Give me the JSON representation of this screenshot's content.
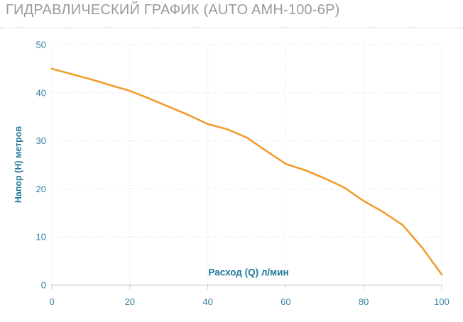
{
  "page": {
    "title": "ГИДРАВЛИЧЕСКИЙ ГРАФИК (AUTO AMH-100-6P)",
    "title_color": "#9a9a9a",
    "background_color": "#ffffff"
  },
  "chart_data": {
    "type": "line",
    "title": "ГИДРАВЛИЧЕСКИЙ ГРАФИК (AUTO AMH-100-6P)",
    "xlabel": "Расход (Q) л/мин",
    "ylabel": "Напор (H) метров",
    "xlim": [
      0,
      100
    ],
    "ylim": [
      0,
      50
    ],
    "xticks": [
      0,
      20,
      40,
      60,
      80,
      100
    ],
    "yticks": [
      0,
      10,
      20,
      30,
      40,
      50
    ],
    "grid": "dotted",
    "legend": "none",
    "series": [
      {
        "x": [
          0,
          5,
          10,
          15,
          20,
          25,
          30,
          35,
          40,
          45,
          50,
          55,
          60,
          65,
          70,
          75,
          80,
          85,
          90,
          95,
          100
        ],
        "y": [
          45,
          43.9,
          42.8,
          41.6,
          40.4,
          38.8,
          37.1,
          35.4,
          33.5,
          32.4,
          30.7,
          27.9,
          25.2,
          23.9,
          22.2,
          20.3,
          17.5,
          15.2,
          12.5,
          7.8,
          2.2
        ]
      }
    ],
    "line_color": "#f09d2e",
    "grid_color": "#e6e6e6",
    "axis_color": "#cccccc",
    "tick_label_color": "#3381a4",
    "axis_title_color": "#1f7899"
  }
}
